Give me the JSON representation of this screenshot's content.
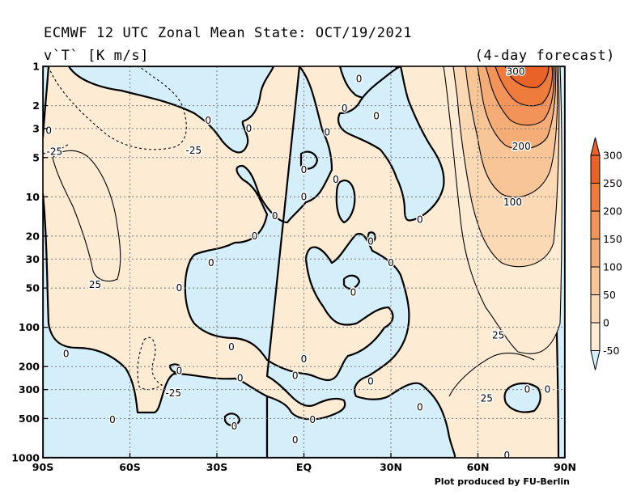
{
  "header": {
    "title": "ECMWF 12 UTC Zonal Mean State: OCT/19/2021",
    "variable": "v`T` [K m/s]",
    "forecast_note": "(4-day forecast)"
  },
  "credit": "Plot produced by FU-Berlin",
  "colors": {
    "neg": "#d4eefa",
    "pos0": "#fdebd3",
    "pos50": "#fbd9b4",
    "pos100": "#f8c596",
    "pos150": "#f5ad78",
    "pos200": "#f29459",
    "pos250": "#ee7c3d",
    "pos300": "#e96227"
  },
  "chart_data": {
    "type": "heatmap",
    "title": "ECMWF 12 UTC Zonal Mean State: OCT/19/2021",
    "subtitle": "v`T` [K m/s]",
    "annotation": "(4-day forecast)",
    "x_axis": {
      "ticks": [
        "90S",
        "60S",
        "30S",
        "EQ",
        "30N",
        "60N",
        "90N"
      ],
      "range": [
        -90,
        90
      ]
    },
    "y_axis": {
      "scale": "log",
      "reversed": true,
      "range": [
        1,
        1000
      ],
      "ticks": [
        "1",
        "2",
        "3",
        "5",
        "10",
        "20",
        "30",
        "50",
        "100",
        "200",
        "300",
        "500",
        "1000"
      ]
    },
    "colorbar": {
      "levels": [
        "-50",
        "0",
        "50",
        "100",
        "150",
        "200",
        "250",
        "300"
      ]
    },
    "contour_labels": [
      {
        "text": "300",
        "lat": 73,
        "p": 1.1
      },
      {
        "text": "200",
        "lat": 75,
        "p": 4.1
      },
      {
        "text": "100",
        "lat": 72,
        "p": 11
      },
      {
        "text": "25",
        "lat": 67,
        "p": 115
      },
      {
        "text": "25",
        "lat": 63,
        "p": 350
      },
      {
        "text": "0",
        "lat": 77,
        "p": 300
      },
      {
        "text": "0",
        "lat": 84,
        "p": 300
      },
      {
        "text": "0",
        "lat": 70,
        "p": 960
      },
      {
        "text": "-25",
        "lat": -86,
        "p": 4.5
      },
      {
        "text": "-25",
        "lat": -38,
        "p": 4.4
      },
      {
        "text": "25",
        "lat": -72,
        "p": 47
      },
      {
        "text": "0",
        "lat": -88,
        "p": 3.1
      },
      {
        "text": "0",
        "lat": -82,
        "p": 160
      },
      {
        "text": "-25",
        "lat": -45,
        "p": 320
      },
      {
        "text": "0",
        "lat": -66,
        "p": 510
      },
      {
        "text": "0",
        "lat": -43,
        "p": 50
      },
      {
        "text": "0",
        "lat": -33,
        "p": 2.6
      },
      {
        "text": "0",
        "lat": -19,
        "p": 3.0
      },
      {
        "text": "0",
        "lat": 8,
        "p": 3.2
      },
      {
        "text": "0",
        "lat": 19,
        "p": 1.25
      },
      {
        "text": "0",
        "lat": 14,
        "p": 2.1
      },
      {
        "text": "0",
        "lat": 0,
        "p": 6.2
      },
      {
        "text": "0",
        "lat": 0,
        "p": 10
      },
      {
        "text": "0",
        "lat": -10,
        "p": 14
      },
      {
        "text": "0",
        "lat": -17,
        "p": 20
      },
      {
        "text": "0",
        "lat": 11,
        "p": 7.4
      },
      {
        "text": "0",
        "lat": 25,
        "p": 2.4
      },
      {
        "text": "0",
        "lat": 40,
        "p": 15
      },
      {
        "text": "0",
        "lat": 23,
        "p": 22
      },
      {
        "text": "0",
        "lat": 30,
        "p": 32
      },
      {
        "text": "0",
        "lat": -32,
        "p": 32
      },
      {
        "text": "0",
        "lat": 17,
        "p": 54
      },
      {
        "text": "0",
        "lat": -25,
        "p": 142
      },
      {
        "text": "0",
        "lat": 0,
        "p": 175
      },
      {
        "text": "0",
        "lat": -43,
        "p": 215
      },
      {
        "text": "0",
        "lat": -22,
        "p": 245
      },
      {
        "text": "0",
        "lat": -3,
        "p": 235
      },
      {
        "text": "0",
        "lat": 23,
        "p": 260
      },
      {
        "text": "0",
        "lat": 40,
        "p": 410
      },
      {
        "text": "0",
        "lat": 3,
        "p": 510
      },
      {
        "text": "0",
        "lat": -24,
        "p": 575
      },
      {
        "text": "0",
        "lat": -3,
        "p": 730
      }
    ]
  }
}
